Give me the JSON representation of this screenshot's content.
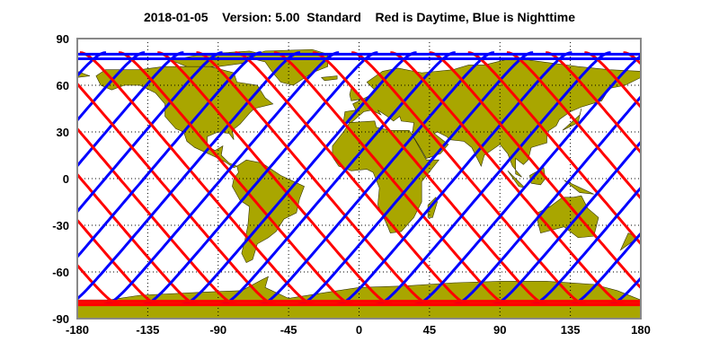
{
  "title": "2018-01-05    Version: 5.00  Standard    Red is Daytime, Blue is Nighttime",
  "map": {
    "projection": "equirectangular",
    "x_ticks": [
      "-180",
      "-135",
      "-90",
      "-45",
      "0",
      "45",
      "90",
      "135",
      "180"
    ],
    "y_ticks": [
      "90",
      "60",
      "30",
      "0",
      "-30",
      "-60",
      "-90"
    ],
    "lon_range": [
      -180,
      180
    ],
    "lat_range": [
      -90,
      90
    ],
    "grid": true,
    "colors": {
      "land": "#a9a600",
      "coastline": "#333300",
      "day_track": "#ff0000",
      "night_track": "#0000ff",
      "frame": "#888888"
    }
  }
}
